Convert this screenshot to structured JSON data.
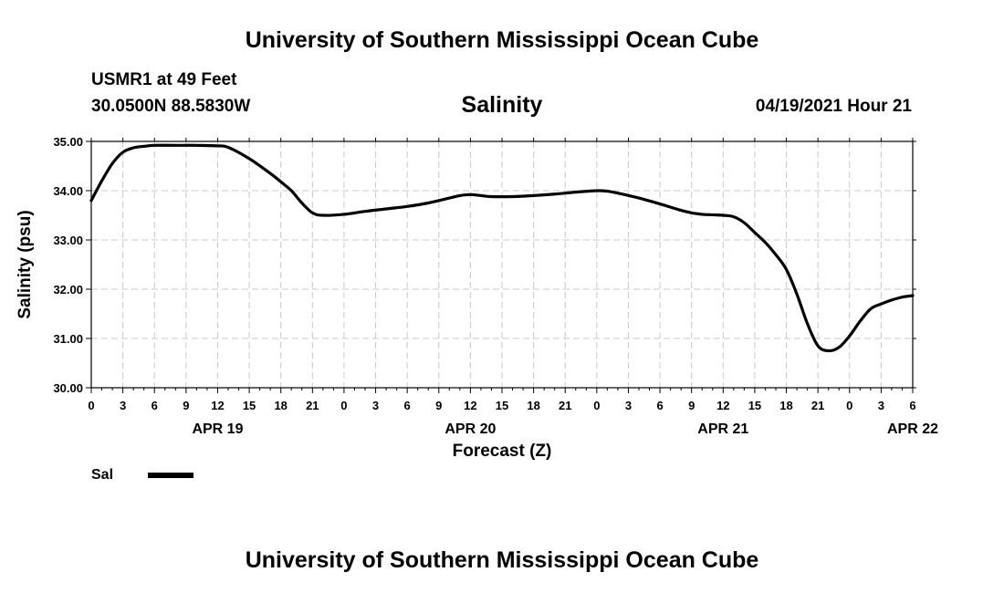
{
  "header": {
    "title": "University of Southern Mississippi Ocean Cube",
    "station": "USMR1 at 49 Feet",
    "coordinates": "30.0500N  88.5830W",
    "run_time": "04/19/2021 Hour 21"
  },
  "footer": {
    "title": "University of Southern Mississippi Ocean Cube"
  },
  "chart_data": {
    "type": "line",
    "title": "Salinity",
    "xlabel": "Forecast (Z)",
    "ylabel": "Salinity (psu)",
    "ylim": [
      30.0,
      35.0
    ],
    "yticks": [
      "30.00",
      "31.00",
      "32.00",
      "33.00",
      "34.00",
      "35.00"
    ],
    "xlim_hours": [
      0,
      78
    ],
    "xticks": [
      "0",
      "3",
      "6",
      "9",
      "12",
      "15",
      "18",
      "21",
      "0",
      "3",
      "6",
      "9",
      "12",
      "15",
      "18",
      "21",
      "0",
      "3",
      "6",
      "9",
      "12",
      "15",
      "18",
      "21",
      "0",
      "3",
      "6"
    ],
    "date_labels": [
      {
        "label": "APR 19",
        "hour": 12
      },
      {
        "label": "APR 20",
        "hour": 36
      },
      {
        "label": "APR 21",
        "hour": 60
      },
      {
        "label": "APR 22",
        "hour": 78
      }
    ],
    "grid": true,
    "legend_position": "bottom-left",
    "series": [
      {
        "name": "Sal",
        "color": "#000000",
        "x": [
          0,
          1,
          2,
          3,
          4,
          5,
          6,
          8,
          10,
          12,
          13,
          15,
          17,
          18,
          19,
          20,
          21,
          22,
          24,
          26,
          28,
          30,
          32,
          34,
          35,
          36,
          37,
          38,
          40,
          42,
          44,
          46,
          48,
          49,
          50,
          52,
          54,
          56,
          57,
          58,
          59,
          60,
          61,
          62,
          63,
          64,
          65,
          66,
          67,
          68,
          69,
          70,
          71,
          72,
          73,
          74,
          75,
          76,
          77,
          78
        ],
        "values": [
          33.8,
          34.2,
          34.55,
          34.78,
          34.87,
          34.9,
          34.92,
          34.92,
          34.92,
          34.91,
          34.88,
          34.65,
          34.35,
          34.18,
          34.0,
          33.75,
          33.55,
          33.5,
          33.52,
          33.58,
          33.63,
          33.68,
          33.75,
          33.85,
          33.9,
          33.92,
          33.9,
          33.88,
          33.88,
          33.9,
          33.93,
          33.97,
          34.0,
          33.99,
          33.95,
          33.85,
          33.73,
          33.6,
          33.55,
          33.52,
          33.51,
          33.5,
          33.47,
          33.35,
          33.15,
          32.95,
          32.7,
          32.4,
          31.9,
          31.3,
          30.85,
          30.75,
          30.82,
          31.05,
          31.35,
          31.6,
          31.7,
          31.78,
          31.84,
          31.87
        ]
      }
    ]
  }
}
